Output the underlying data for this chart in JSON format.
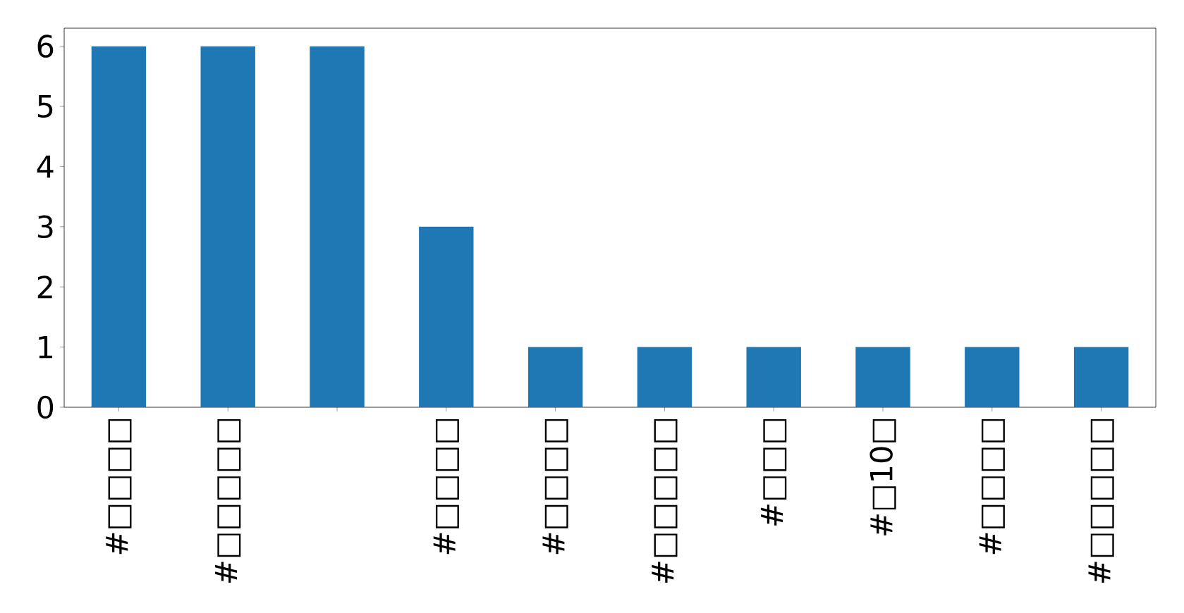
{
  "chart_data": {
    "type": "bar",
    "categories": [
      "#□□□□",
      "#□□□□□",
      null,
      "#□□□□",
      "#□□□□",
      "#□□□□□",
      "#□□□",
      "#□10□",
      "#□□□□",
      "#□□□□□"
    ],
    "values": [
      6,
      6,
      6,
      3,
      1,
      1,
      1,
      1,
      1,
      1
    ],
    "color": "#1f77b4",
    "ylim": [
      0,
      6.3
    ],
    "yticks": [
      0,
      1,
      2,
      3,
      4,
      5,
      6
    ]
  }
}
